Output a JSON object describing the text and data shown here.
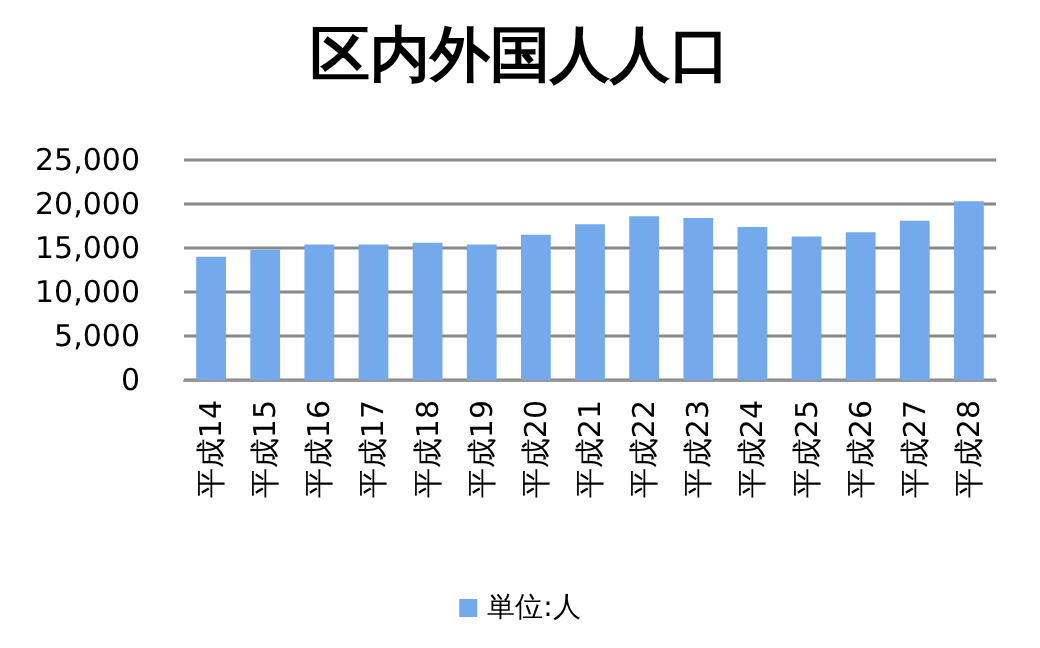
{
  "chart_data": {
    "type": "bar",
    "title": "区内外国人人口",
    "categories": [
      "平成14",
      "平成15",
      "平成16",
      "平成17",
      "平成18",
      "平成19",
      "平成20",
      "平成21",
      "平成22",
      "平成23",
      "平成24",
      "平成25",
      "平成26",
      "平成27",
      "平成28"
    ],
    "series": [
      {
        "name": "単位:人",
        "color": "#74aaec",
        "values": [
          14000,
          14800,
          15400,
          15400,
          15600,
          15400,
          16500,
          17700,
          18600,
          18400,
          17400,
          16300,
          16800,
          18100,
          20300
        ]
      }
    ],
    "ylim": [
      0,
      25000
    ],
    "yticks": [
      0,
      {
        "value": 5000,
        "label": "5,000"
      },
      {
        "value": 10000,
        "label": "10,000"
      },
      {
        "value": 15000,
        "label": "15,000"
      },
      {
        "value": 20000,
        "label": "20,000"
      },
      {
        "value": 25000,
        "label": "25,000"
      }
    ],
    "grid": "y",
    "legend": "bottom"
  }
}
